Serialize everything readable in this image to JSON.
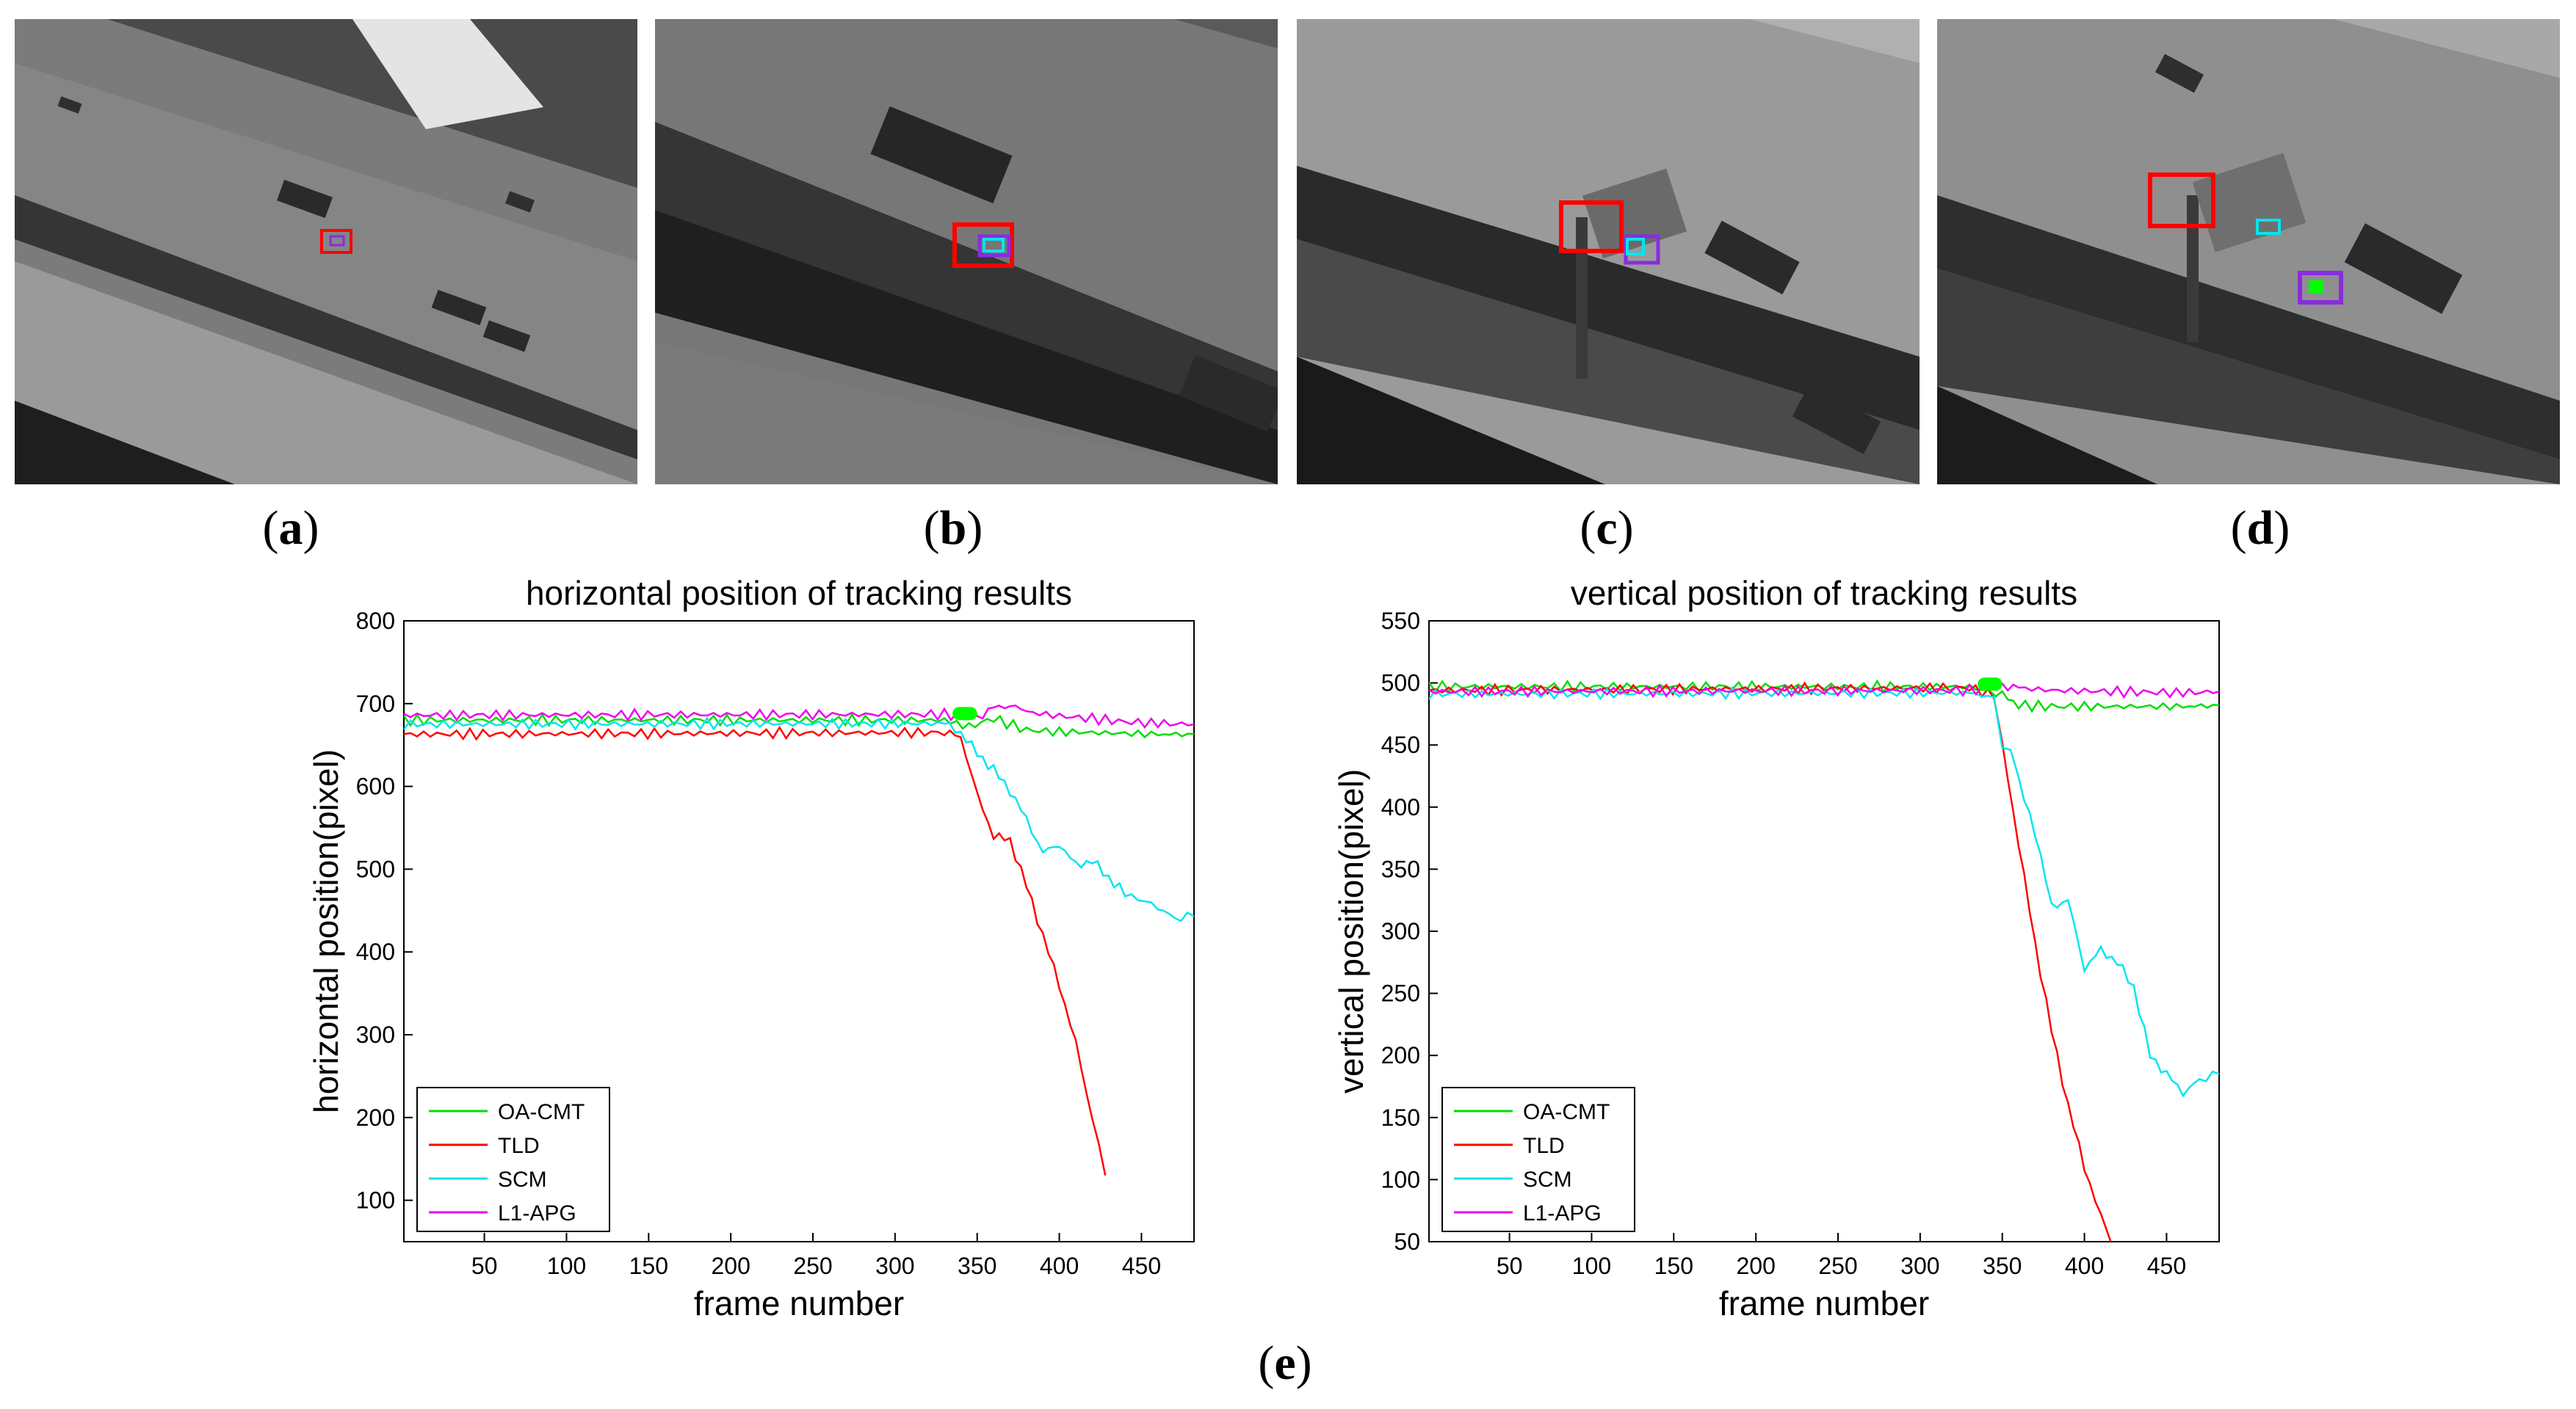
{
  "panels": [
    {
      "label_open": "(",
      "letter": "a",
      "label_close": ")"
    },
    {
      "label_open": "(",
      "letter": "b",
      "label_close": ")"
    },
    {
      "label_open": "(",
      "letter": "c",
      "label_close": ")"
    },
    {
      "label_open": "(",
      "letter": "d",
      "label_close": ")"
    }
  ],
  "figure_label": {
    "label_open": "(",
    "letter": "e",
    "label_close": ")"
  },
  "colors": {
    "OA-CMT": "#00dd00",
    "TLD": "#ff0000",
    "SCM": "#00e5ee",
    "L1-APG": "#ee00ee",
    "highlight": "#00ff00"
  },
  "chart_data": [
    {
      "type": "line",
      "title": "horizontal position of tracking results",
      "xlabel": "frame number",
      "ylabel": "horizontal position(pixel)",
      "xlim": [
        1,
        482
      ],
      "ylim": [
        50,
        800
      ],
      "xticks": [
        50,
        100,
        150,
        200,
        250,
        300,
        350,
        400,
        450
      ],
      "yticks": [
        100,
        200,
        300,
        400,
        500,
        600,
        700,
        800
      ],
      "legend": "bottom-left",
      "highlight": {
        "x": [
          335,
          350
        ],
        "y": 688
      },
      "series": [
        {
          "name": "OA-CMT",
          "x": [
            1,
            330,
            345,
            360,
            380,
            400,
            420,
            440,
            460,
            482
          ],
          "y": [
            680,
            680,
            672,
            682,
            668,
            666,
            665,
            664,
            663,
            663
          ]
        },
        {
          "name": "TLD",
          "x": [
            1,
            330,
            340,
            350,
            360,
            370,
            380,
            390,
            400,
            410,
            420,
            428
          ],
          "y": [
            663,
            665,
            660,
            590,
            540,
            535,
            480,
            420,
            360,
            290,
            200,
            130
          ]
        },
        {
          "name": "SCM",
          "x": [
            1,
            330,
            340,
            350,
            360,
            370,
            380,
            390,
            400,
            410,
            420,
            430,
            440,
            460,
            470,
            482
          ],
          "y": [
            675,
            676,
            665,
            640,
            620,
            595,
            560,
            520,
            530,
            505,
            510,
            490,
            470,
            455,
            440,
            443
          ]
        },
        {
          "name": "L1-APG",
          "x": [
            1,
            330,
            350,
            360,
            370,
            380,
            400,
            420,
            440,
            460,
            482
          ],
          "y": [
            686,
            687,
            683,
            695,
            698,
            690,
            685,
            682,
            678,
            676,
            675
          ]
        }
      ]
    },
    {
      "type": "line",
      "title": "vertical position of tracking results",
      "xlabel": "frame number",
      "ylabel": "vertical position(pixel)",
      "xlim": [
        1,
        482
      ],
      "ylim": [
        50,
        550
      ],
      "xticks": [
        50,
        100,
        150,
        200,
        250,
        300,
        350,
        400,
        450
      ],
      "yticks": [
        50,
        100,
        150,
        200,
        250,
        300,
        350,
        400,
        450,
        500,
        550
      ],
      "legend": "bottom-left",
      "highlight": {
        "x": [
          335,
          350
        ],
        "y": 499
      },
      "series": [
        {
          "name": "OA-CMT",
          "x": [
            1,
            330,
            350,
            360,
            380,
            420,
            460,
            482
          ],
          "y": [
            497,
            497,
            490,
            482,
            481,
            481,
            481,
            482
          ]
        },
        {
          "name": "TLD",
          "x": [
            1,
            330,
            345,
            350,
            360,
            370,
            380,
            390,
            400,
            410,
            416
          ],
          "y": [
            494,
            496,
            490,
            450,
            370,
            290,
            220,
            160,
            110,
            70,
            50
          ]
        },
        {
          "name": "SCM",
          "x": [
            1,
            330,
            345,
            350,
            355,
            360,
            370,
            380,
            390,
            400,
            410,
            420,
            430,
            440,
            450,
            460,
            470,
            482
          ],
          "y": [
            491,
            492,
            488,
            450,
            445,
            420,
            380,
            320,
            325,
            270,
            285,
            275,
            255,
            200,
            185,
            170,
            180,
            185
          ]
        },
        {
          "name": "L1-APG",
          "x": [
            1,
            330,
            350,
            360,
            380,
            420,
            460,
            482
          ],
          "y": [
            493,
            494,
            498,
            496,
            494,
            493,
            492,
            493
          ]
        }
      ]
    }
  ]
}
